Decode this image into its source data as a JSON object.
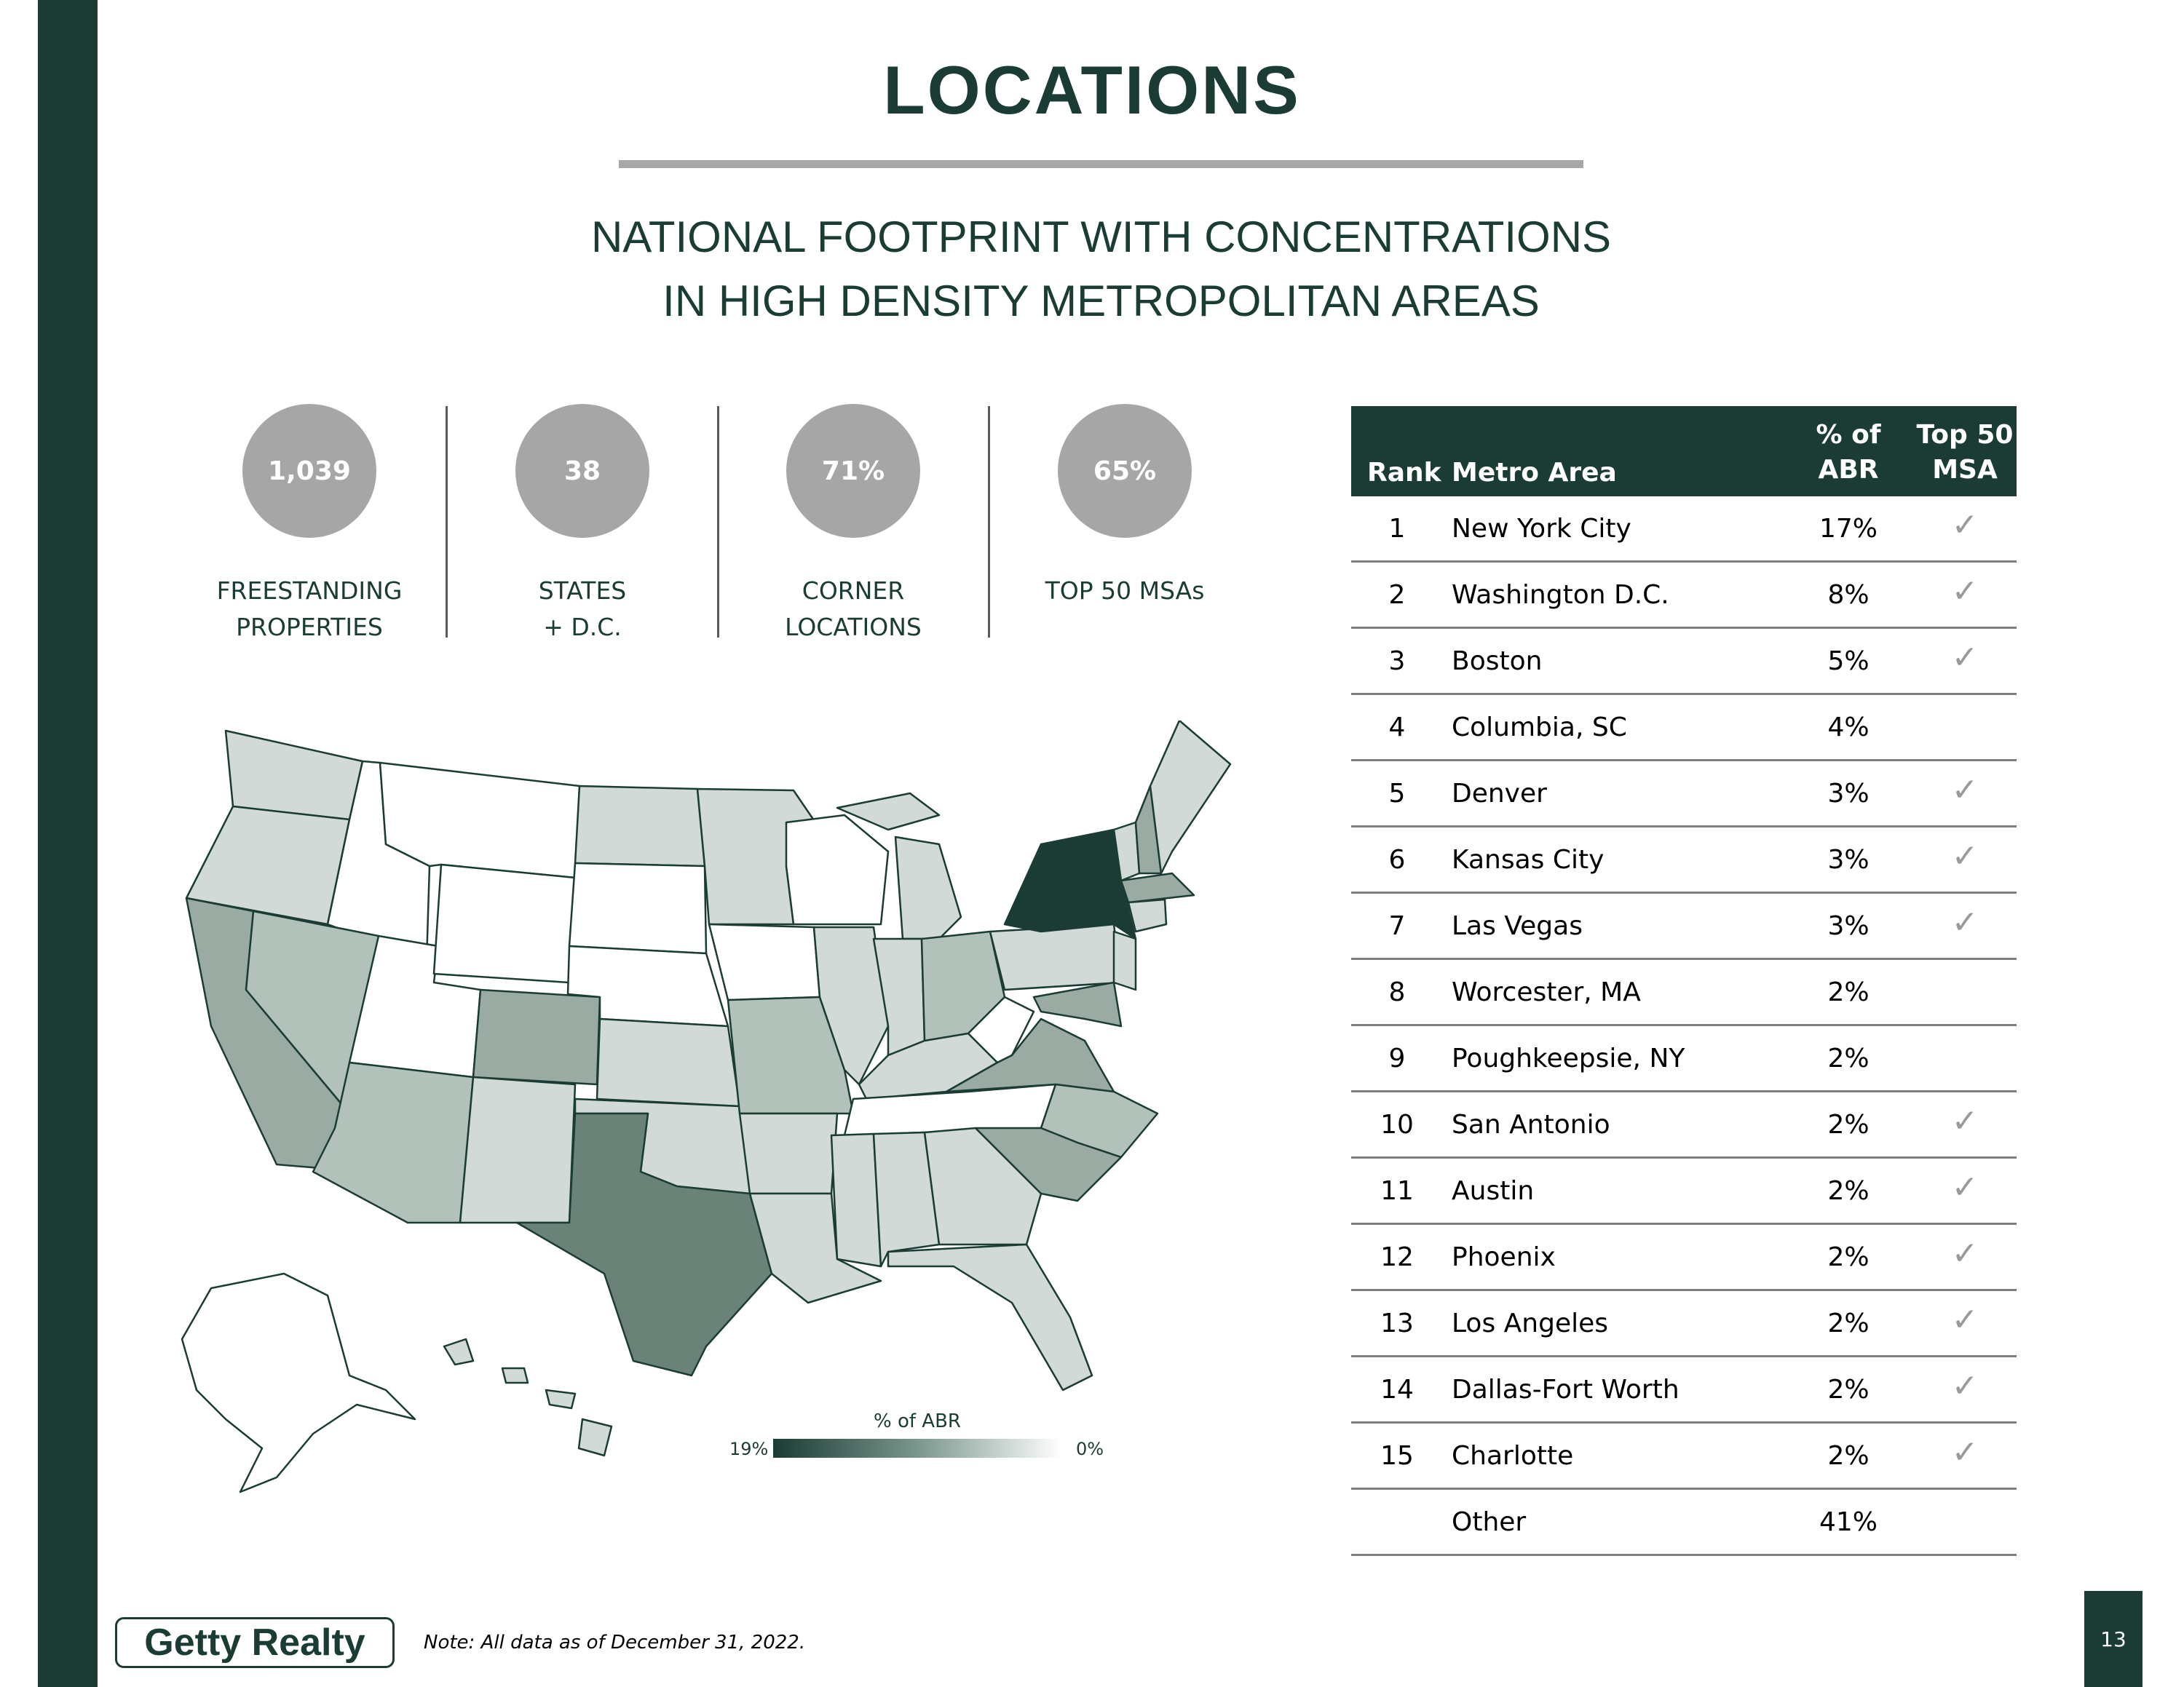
{
  "title": "LOCATIONS",
  "subtitle": {
    "line1": "NATIONAL FOOTPRINT WITH CONCENTRATIONS",
    "line2": "IN HIGH DENSITY METROPOLITAN AREAS"
  },
  "stats": [
    {
      "value": "1,039",
      "label_line1": "FREESTANDING",
      "label_line2": "PROPERTIES"
    },
    {
      "value": "38",
      "label_line1": "STATES",
      "label_line2": "+ D.C."
    },
    {
      "value": "71%",
      "label_line1": "CORNER",
      "label_line2": "LOCATIONS"
    },
    {
      "value": "65%",
      "label_line1": "TOP 50 MSAs",
      "label_line2": ""
    }
  ],
  "map": {
    "legend_title": "% of ABR",
    "legend_min": "19%",
    "legend_max": "0%",
    "colors": {
      "darkest": "#1b3c34",
      "dark": "#6b8278",
      "mid": "#9aaba4",
      "light": "#b3c1bb",
      "lightest": "#d1dad6",
      "none": "#ffffff"
    }
  },
  "table": {
    "headers": {
      "rank": "Rank",
      "metro": "Metro Area",
      "abr_line1": "% of",
      "abr_line2": "ABR",
      "top50_line1": "Top 50",
      "top50_line2": "MSA"
    },
    "check_symbol": "✓",
    "rows": [
      {
        "rank": "1",
        "metro": "New York City",
        "abr": "17%",
        "top50": "✓"
      },
      {
        "rank": "2",
        "metro": "Washington D.C.",
        "abr": "8%",
        "top50": "✓"
      },
      {
        "rank": "3",
        "metro": "Boston",
        "abr": "5%",
        "top50": "✓"
      },
      {
        "rank": "4",
        "metro": "Columbia, SC",
        "abr": "4%",
        "top50": ""
      },
      {
        "rank": "5",
        "metro": "Denver",
        "abr": "3%",
        "top50": "✓"
      },
      {
        "rank": "6",
        "metro": "Kansas City",
        "abr": "3%",
        "top50": "✓"
      },
      {
        "rank": "7",
        "metro": "Las Vegas",
        "abr": "3%",
        "top50": "✓"
      },
      {
        "rank": "8",
        "metro": "Worcester, MA",
        "abr": "2%",
        "top50": ""
      },
      {
        "rank": "9",
        "metro": "Poughkeepsie, NY",
        "abr": "2%",
        "top50": ""
      },
      {
        "rank": "10",
        "metro": "San Antonio",
        "abr": "2%",
        "top50": "✓"
      },
      {
        "rank": "11",
        "metro": "Austin",
        "abr": "2%",
        "top50": "✓"
      },
      {
        "rank": "12",
        "metro": "Phoenix",
        "abr": "2%",
        "top50": "✓"
      },
      {
        "rank": "13",
        "metro": "Los Angeles",
        "abr": "2%",
        "top50": "✓"
      },
      {
        "rank": "14",
        "metro": "Dallas-Fort Worth",
        "abr": "2%",
        "top50": "✓"
      },
      {
        "rank": "15",
        "metro": "Charlotte",
        "abr": "2%",
        "top50": "✓"
      },
      {
        "rank": "",
        "metro": "Other",
        "abr": "41%",
        "top50": ""
      }
    ]
  },
  "footer": {
    "logo_text": "Getty Realty",
    "note": "Note: All data as of December 31, 2022.",
    "page_number": "13"
  }
}
